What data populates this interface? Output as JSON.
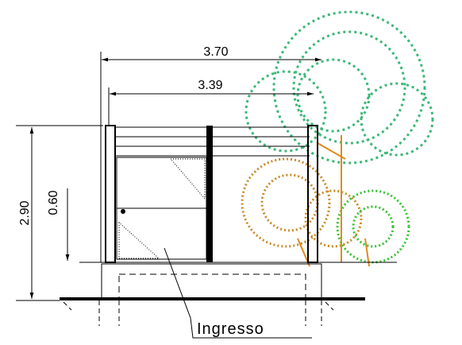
{
  "dimensions": {
    "overall_width": "3.70",
    "inner_width": "3.39",
    "height": "2.90",
    "lower_height": "0.60"
  },
  "label": "Ingresso"
}
